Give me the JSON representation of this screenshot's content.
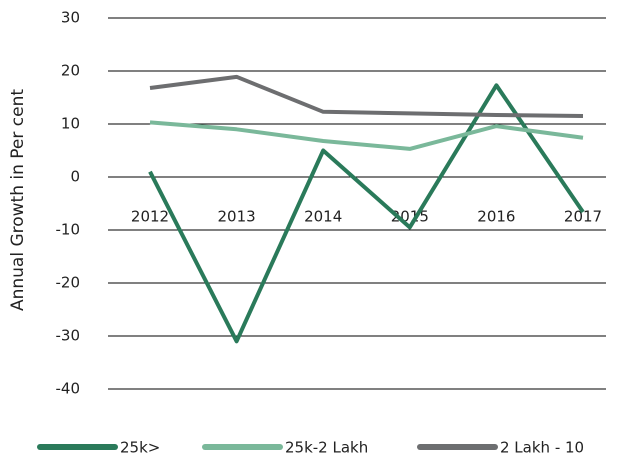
{
  "chart_data": {
    "type": "line",
    "y_label": "Annual Growth in Per cent",
    "categories": [
      "2012",
      "2013",
      "2014",
      "2015",
      "2016",
      "2017"
    ],
    "series": [
      {
        "name": "25k>",
        "color": "#2a7a5a",
        "values": [
          1,
          -31,
          5,
          -9.5,
          17.3,
          -6.6
        ]
      },
      {
        "name": "25k-2 Lakh",
        "color": "#7ab89a",
        "values": [
          10.3,
          9,
          6.8,
          5.3,
          9.6,
          7.4
        ]
      },
      {
        "name": "2 Lakh - 10",
        "color": "#6d6e70",
        "values": [
          16.8,
          18.9,
          12.3,
          12,
          11.7,
          11.5
        ]
      }
    ],
    "ylim": [
      -40,
      30
    ],
    "yticks": [
      -40,
      -30,
      -20,
      -10,
      0,
      10,
      20,
      30
    ],
    "grid": true,
    "legend": "bottom"
  }
}
